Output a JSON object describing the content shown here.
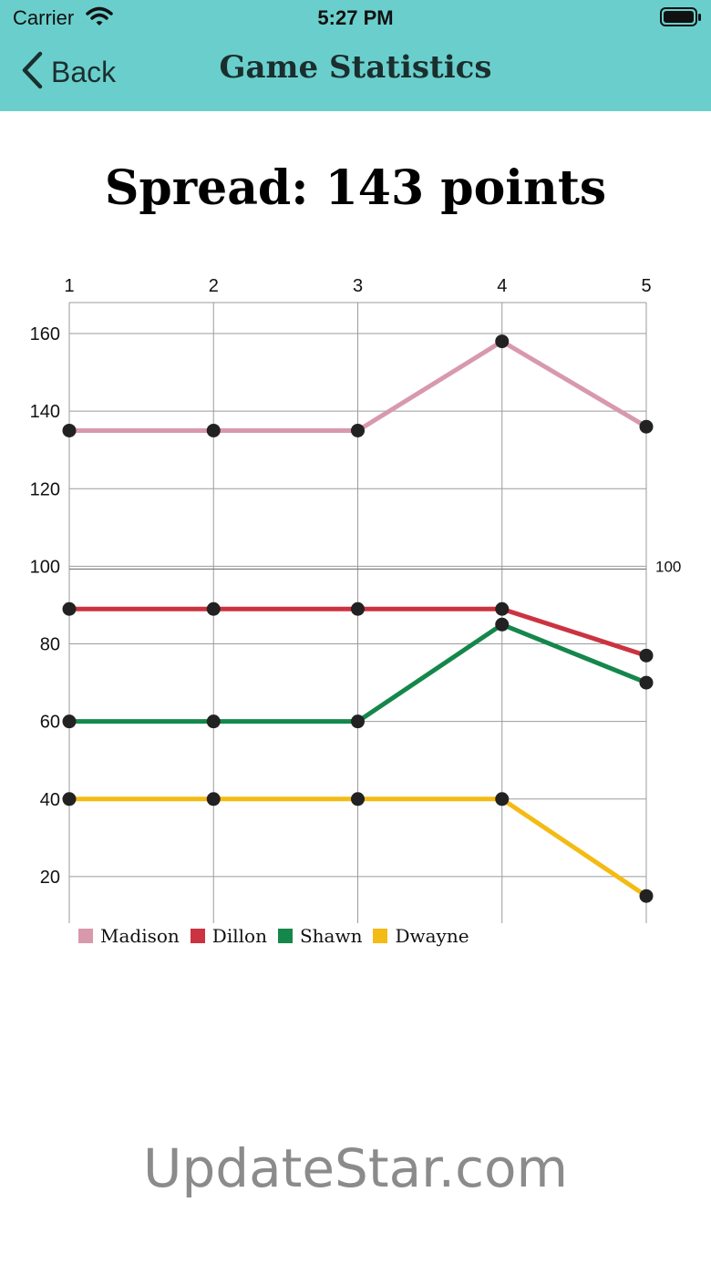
{
  "status_bar": {
    "carrier": "Carrier",
    "time": "5:27 PM"
  },
  "nav": {
    "back_label": "Back",
    "title": "Game Statistics",
    "bar_color": "#6acfcc"
  },
  "headline": "Spread: 143 points",
  "chart_data": {
    "type": "line",
    "x": [
      1,
      2,
      3,
      4,
      5
    ],
    "x_tick_labels": [
      "1",
      "2",
      "3",
      "4",
      "5"
    ],
    "y_tick_labels": [
      "160",
      "140",
      "120",
      "100",
      "80",
      "60",
      "40",
      "20"
    ],
    "y_ticks": [
      160,
      140,
      120,
      100,
      80,
      60,
      40,
      20
    ],
    "ylim": [
      8,
      168
    ],
    "reference_line": {
      "value": 100,
      "label": "100"
    },
    "grid": true,
    "legend_position": "bottom-left",
    "series": [
      {
        "name": "Madison",
        "color": "#d899ad",
        "values": [
          135,
          135,
          135,
          158,
          136
        ]
      },
      {
        "name": "Dillon",
        "color": "#cc3340",
        "values": [
          89,
          89,
          89,
          89,
          77
        ]
      },
      {
        "name": "Shawn",
        "color": "#15874b",
        "values": [
          60,
          60,
          60,
          85,
          70
        ]
      },
      {
        "name": "Dwayne",
        "color": "#f4bb14",
        "values": [
          40,
          40,
          40,
          40,
          15
        ]
      }
    ]
  },
  "watermark": "UpdateStar.com"
}
